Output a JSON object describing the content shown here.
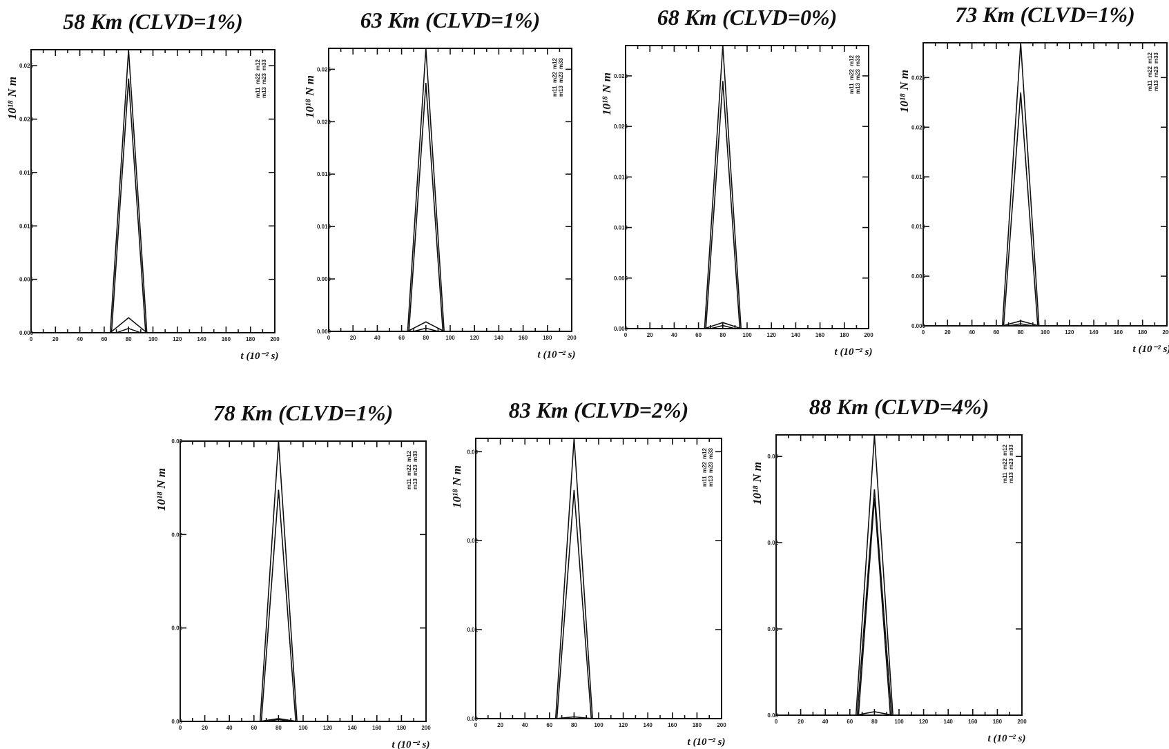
{
  "chart_data": [
    {
      "type": "line",
      "title": "58 Km (CLVD=1%)",
      "ylabel": "10¹⁸ N m",
      "xlabel": "t (10⁻² s)",
      "xlim": [
        0,
        200
      ],
      "ylim": [
        0,
        0.0265
      ],
      "xticks": [
        "0",
        "20",
        "40",
        "60",
        "80",
        "100",
        "120",
        "140",
        "160",
        "180",
        "200"
      ],
      "yticks": [
        {
          "value": 0.0,
          "label": "0.000"
        },
        {
          "value": 0.005,
          "label": "0.005"
        },
        {
          "value": 0.01,
          "label": "0.010"
        },
        {
          "value": 0.015,
          "label": "0.015"
        },
        {
          "value": 0.02,
          "label": "0.020"
        },
        {
          "value": 0.025,
          "label": "0.025"
        }
      ],
      "legend": [
        "m11",
        "m22",
        "m12",
        "m13",
        "m23",
        "m33"
      ],
      "series": [
        {
          "x": [
            0,
            65,
            80,
            95,
            200
          ],
          "y": [
            0,
            0,
            0.0265,
            0,
            0
          ]
        },
        {
          "x": [
            0,
            66,
            80,
            94,
            200
          ],
          "y": [
            0,
            0,
            0.0238,
            0,
            0
          ]
        },
        {
          "x": [
            0,
            65,
            80,
            95,
            200
          ],
          "y": [
            0,
            0,
            0.0014,
            0,
            0
          ]
        },
        {
          "x": [
            0,
            70,
            80,
            90,
            200
          ],
          "y": [
            0,
            0,
            0.0004,
            0,
            0
          ]
        }
      ]
    },
    {
      "type": "line",
      "title": "63 Km (CLVD=1%)",
      "ylabel": "10¹⁸ N m",
      "xlabel": "t (10⁻² s)",
      "xlim": [
        0,
        200
      ],
      "ylim": [
        0,
        0.027
      ],
      "xticks": [
        "0",
        "20",
        "40",
        "60",
        "80",
        "100",
        "120",
        "140",
        "160",
        "180",
        "200"
      ],
      "yticks": [
        {
          "value": 0.0,
          "label": "0.000"
        },
        {
          "value": 0.005,
          "label": "0.005"
        },
        {
          "value": 0.01,
          "label": "0.010"
        },
        {
          "value": 0.015,
          "label": "0.015"
        },
        {
          "value": 0.02,
          "label": "0.020"
        },
        {
          "value": 0.025,
          "label": "0.025"
        }
      ],
      "legend": [
        "m11",
        "m22",
        "m12",
        "m13",
        "m23",
        "m33"
      ],
      "series": [
        {
          "x": [
            0,
            65,
            80,
            95,
            200
          ],
          "y": [
            0,
            0,
            0.027,
            0,
            0
          ]
        },
        {
          "x": [
            0,
            66,
            80,
            94,
            200
          ],
          "y": [
            0,
            0,
            0.0237,
            0,
            0
          ]
        },
        {
          "x": [
            0,
            65,
            80,
            95,
            200
          ],
          "y": [
            0,
            0,
            0.0009,
            0,
            0
          ]
        },
        {
          "x": [
            0,
            70,
            80,
            90,
            200
          ],
          "y": [
            0,
            0,
            0.0003,
            0,
            0
          ]
        }
      ]
    },
    {
      "type": "line",
      "title": "68 Km (CLVD=0%)",
      "ylabel": "10¹⁸ N m",
      "xlabel": "t (10⁻² s)",
      "xlim": [
        0,
        200
      ],
      "ylim": [
        0,
        0.028
      ],
      "xticks": [
        "0",
        "20",
        "40",
        "60",
        "80",
        "100",
        "120",
        "140",
        "160",
        "180",
        "200"
      ],
      "yticks": [
        {
          "value": 0.0,
          "label": "0.000"
        },
        {
          "value": 0.005,
          "label": "0.005"
        },
        {
          "value": 0.01,
          "label": "0.010"
        },
        {
          "value": 0.015,
          "label": "0.015"
        },
        {
          "value": 0.02,
          "label": "0.020"
        },
        {
          "value": 0.025,
          "label": "0.025"
        }
      ],
      "legend": [
        "m11",
        "m22",
        "m12",
        "m13",
        "m23",
        "m33"
      ],
      "series": [
        {
          "x": [
            0,
            65,
            80,
            95,
            200
          ],
          "y": [
            0,
            0,
            0.028,
            0,
            0
          ]
        },
        {
          "x": [
            0,
            66,
            80,
            94,
            200
          ],
          "y": [
            0,
            0,
            0.0245,
            0,
            0
          ]
        },
        {
          "x": [
            0,
            65,
            80,
            95,
            200
          ],
          "y": [
            0,
            0,
            0.0006,
            0,
            0
          ]
        },
        {
          "x": [
            0,
            70,
            80,
            90,
            200
          ],
          "y": [
            0,
            0,
            0.0003,
            0,
            0
          ]
        }
      ]
    },
    {
      "type": "line",
      "title": "73 Km (CLVD=1%)",
      "ylabel": "10¹⁸ N m",
      "xlabel": "t (10⁻² s)",
      "xlim": [
        0,
        200
      ],
      "ylim": [
        0,
        0.0285
      ],
      "xticks": [
        "0",
        "20",
        "40",
        "60",
        "80",
        "100",
        "120",
        "140",
        "160",
        "180",
        "200"
      ],
      "yticks": [
        {
          "value": 0.0,
          "label": "0.000"
        },
        {
          "value": 0.005,
          "label": "0.005"
        },
        {
          "value": 0.01,
          "label": "0.010"
        },
        {
          "value": 0.015,
          "label": "0.015"
        },
        {
          "value": 0.02,
          "label": "0.020"
        },
        {
          "value": 0.025,
          "label": "0.025"
        }
      ],
      "legend": [
        "m11",
        "m22",
        "m12",
        "m13",
        "m23",
        "m33"
      ],
      "series": [
        {
          "x": [
            0,
            65,
            80,
            95,
            200
          ],
          "y": [
            0,
            0,
            0.0285,
            0,
            0
          ]
        },
        {
          "x": [
            0,
            66,
            80,
            94,
            200
          ],
          "y": [
            0,
            0,
            0.0235,
            0,
            0
          ]
        },
        {
          "x": [
            0,
            65,
            80,
            95,
            200
          ],
          "y": [
            0,
            0,
            0.0005,
            0,
            0
          ]
        },
        {
          "x": [
            0,
            70,
            80,
            90,
            200
          ],
          "y": [
            0,
            0,
            0.0002,
            0,
            0
          ]
        }
      ]
    },
    {
      "type": "line",
      "title": "78 Km (CLVD=1%)",
      "ylabel": "10¹⁸ N m",
      "xlabel": "t (10⁻² s)",
      "xlim": [
        0,
        200
      ],
      "ylim": [
        0,
        0.03
      ],
      "xticks": [
        "0",
        "20",
        "40",
        "60",
        "80",
        "100",
        "120",
        "140",
        "160",
        "180",
        "200"
      ],
      "yticks": [
        {
          "value": 0.0,
          "label": "0.00"
        },
        {
          "value": 0.01,
          "label": "0.01"
        },
        {
          "value": 0.02,
          "label": "0.02"
        },
        {
          "value": 0.03,
          "label": "0.03"
        }
      ],
      "legend": [
        "m11",
        "m22",
        "m12",
        "m13",
        "m23",
        "m33"
      ],
      "series": [
        {
          "x": [
            0,
            65,
            80,
            95,
            200
          ],
          "y": [
            0,
            0,
            0.03,
            0,
            0
          ]
        },
        {
          "x": [
            0,
            66,
            80,
            94,
            200
          ],
          "y": [
            0,
            0,
            0.0248,
            0,
            0
          ]
        },
        {
          "x": [
            0,
            65,
            80,
            95,
            200
          ],
          "y": [
            0,
            0,
            0.0003,
            0,
            0
          ]
        },
        {
          "x": [
            0,
            70,
            80,
            90,
            200
          ],
          "y": [
            0,
            0,
            0.0002,
            0,
            0
          ]
        }
      ]
    },
    {
      "type": "line",
      "title": "83 Km (CLVD=2%)",
      "ylabel": "10¹⁸ N m",
      "xlabel": "t (10⁻² s)",
      "xlim": [
        0,
        200
      ],
      "ylim": [
        0,
        0.0315
      ],
      "xticks": [
        "0",
        "20",
        "40",
        "60",
        "80",
        "100",
        "120",
        "140",
        "160",
        "180",
        "200"
      ],
      "yticks": [
        {
          "value": 0.0,
          "label": "0.00"
        },
        {
          "value": 0.01,
          "label": "0.01"
        },
        {
          "value": 0.02,
          "label": "0.02"
        },
        {
          "value": 0.03,
          "label": "0.03"
        }
      ],
      "legend": [
        "m11",
        "m22",
        "m12",
        "m13",
        "m23",
        "m33"
      ],
      "series": [
        {
          "x": [
            0,
            65,
            80,
            95,
            200
          ],
          "y": [
            0,
            0,
            0.0315,
            0,
            0
          ]
        },
        {
          "x": [
            0,
            66,
            80,
            94,
            200
          ],
          "y": [
            0,
            0,
            0.0257,
            0,
            0
          ]
        },
        {
          "x": [
            0,
            65,
            80,
            95,
            200
          ],
          "y": [
            0,
            0,
            0.0002,
            0,
            0
          ]
        }
      ]
    },
    {
      "type": "line",
      "title": "88 Km (CLVD=4%)",
      "ylabel": "10¹⁸ N m",
      "xlabel": "t (10⁻² s)",
      "xlim": [
        0,
        200
      ],
      "ylim": [
        0,
        0.0325
      ],
      "xticks": [
        "0",
        "20",
        "40",
        "60",
        "80",
        "100",
        "120",
        "140",
        "160",
        "180",
        "200"
      ],
      "yticks": [
        {
          "value": 0.0,
          "label": "0.00"
        },
        {
          "value": 0.01,
          "label": "0.01"
        },
        {
          "value": 0.02,
          "label": "0.02"
        },
        {
          "value": 0.03,
          "label": "0.03"
        }
      ],
      "legend": [
        "m11",
        "m22",
        "m12",
        "m13",
        "m23",
        "m33"
      ],
      "series": [
        {
          "x": [
            0,
            65,
            80,
            95,
            200
          ],
          "y": [
            0,
            0,
            0.0325,
            0,
            0
          ]
        },
        {
          "x": [
            0,
            66,
            80,
            94,
            200
          ],
          "y": [
            0,
            0,
            0.0262,
            0,
            0
          ]
        },
        {
          "x": [
            0,
            67,
            80,
            93,
            200
          ],
          "y": [
            0,
            0,
            0.0252,
            0,
            0
          ]
        },
        {
          "x": [
            0,
            65,
            80,
            95,
            200
          ],
          "y": [
            0,
            0,
            0.0004,
            0,
            0
          ]
        }
      ]
    }
  ]
}
